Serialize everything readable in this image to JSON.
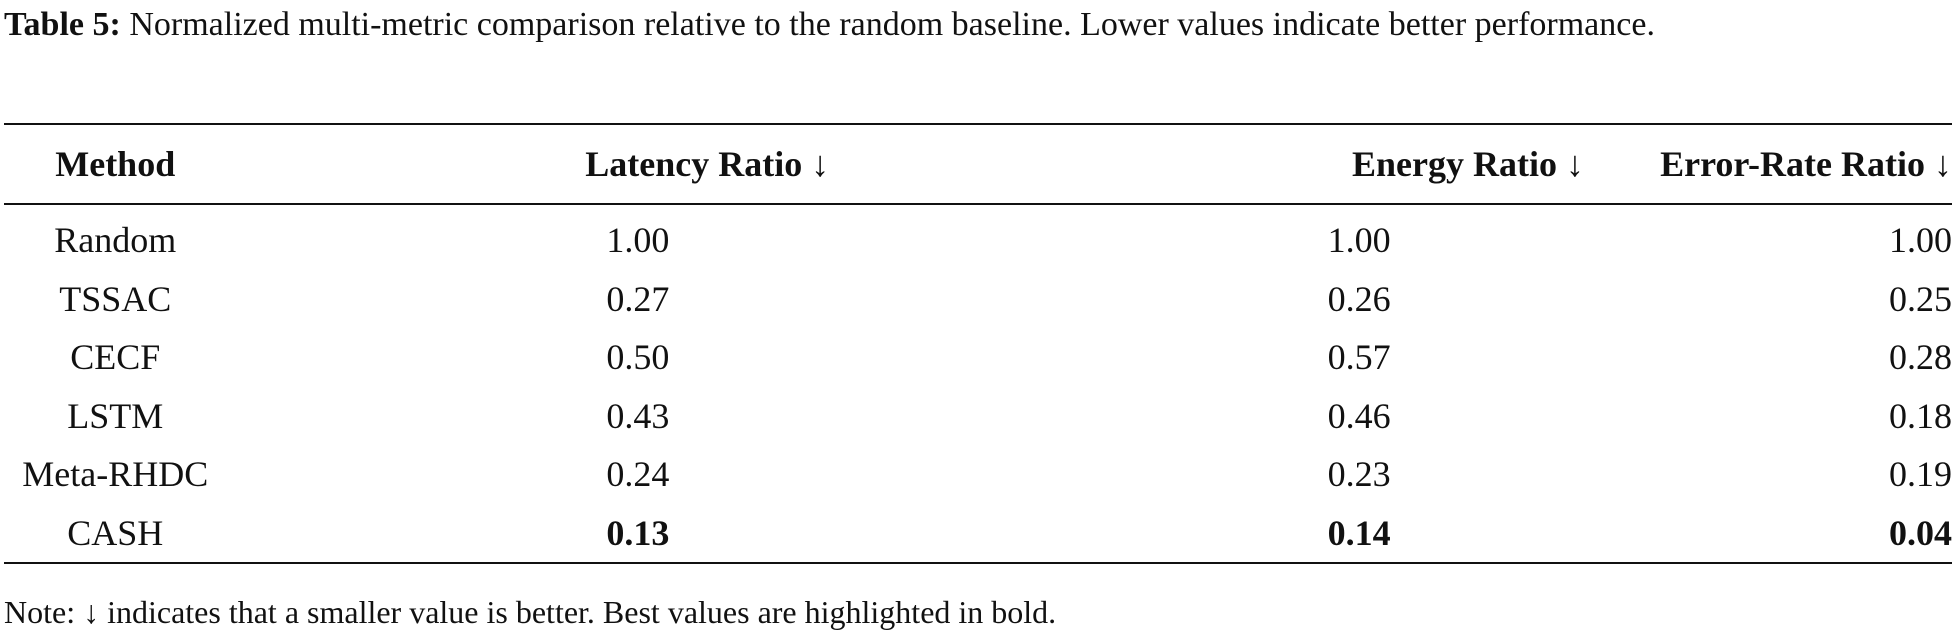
{
  "caption": {
    "label": "Table 5:",
    "text": "Normalized multi-metric comparison relative to the random baseline. Lower values indicate better performance."
  },
  "table": {
    "headers": {
      "method": "Method",
      "latency": "Latency Ratio ↓",
      "energy": "Energy Ratio ↓",
      "error": "Error-Rate Ratio ↓"
    },
    "rows": [
      {
        "method": "Random",
        "latency": "1.00",
        "energy": "1.00",
        "error": "1.00"
      },
      {
        "method": "TSSAC",
        "latency": "0.27",
        "energy": "0.26",
        "error": "0.25"
      },
      {
        "method": "CECF",
        "latency": "0.50",
        "energy": "0.57",
        "error": "0.28"
      },
      {
        "method": "LSTM",
        "latency": "0.43",
        "energy": "0.46",
        "error": "0.18"
      },
      {
        "method": "Meta-RHDC",
        "latency": "0.24",
        "energy": "0.23",
        "error": "0.19"
      },
      {
        "method": "CASH",
        "latency": "0.13",
        "energy": "0.14",
        "error": "0.04"
      }
    ]
  },
  "note": "Note: ↓ indicates that a smaller value is better. Best values are highlighted in bold."
}
